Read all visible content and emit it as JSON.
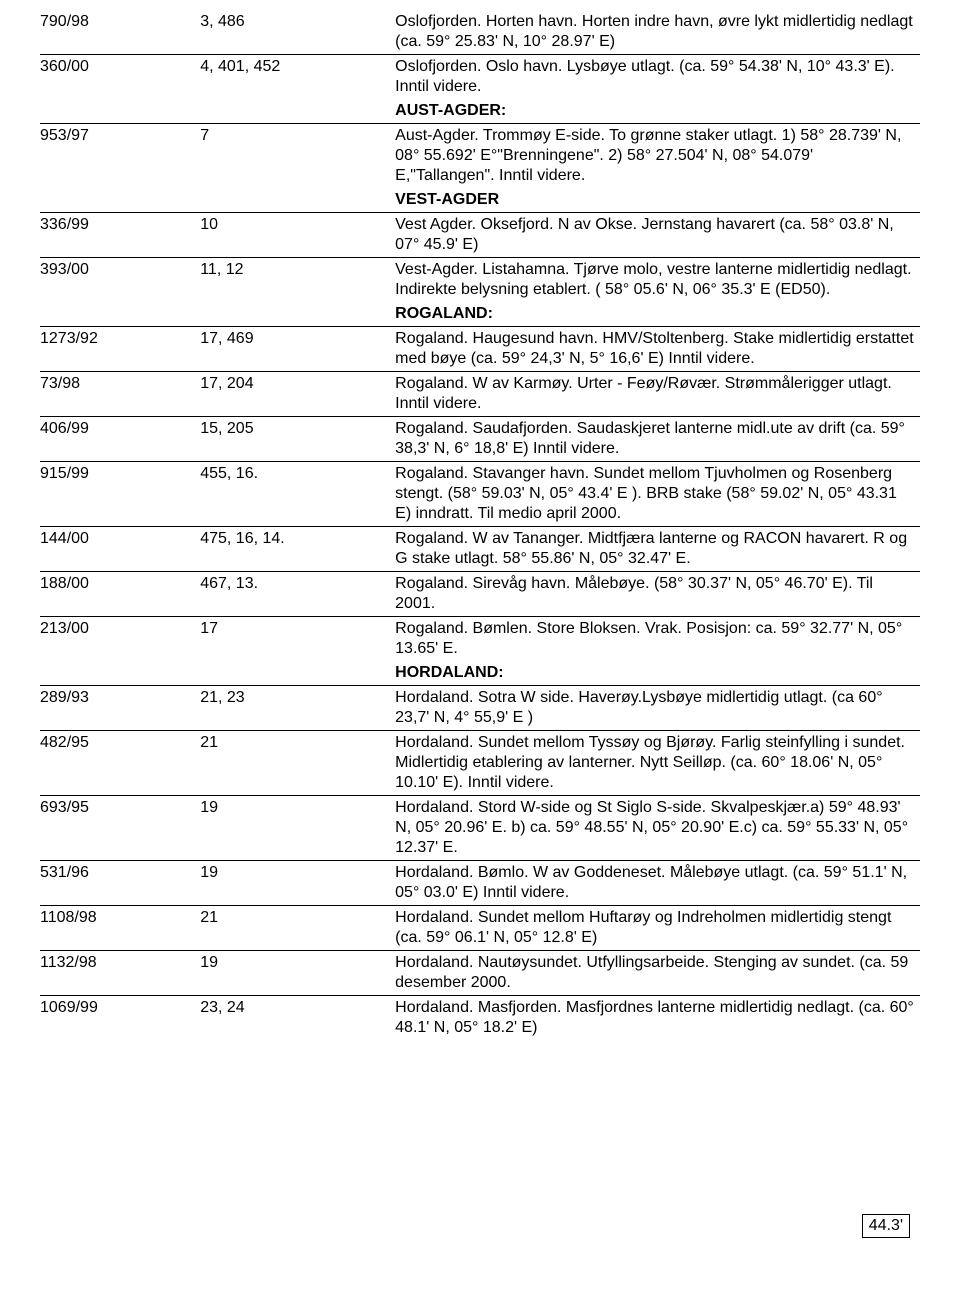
{
  "sections": {
    "aust_agder": "AUST-AGDER:",
    "vest_agder": "VEST-AGDER",
    "rogaland": "ROGALAND:",
    "hordaland": "HORDALAND:"
  },
  "rows": {
    "r790_98": {
      "c0": "790/98",
      "c1": "3, 486",
      "c2": "Oslofjorden. Horten havn. Horten indre havn, øvre lykt midlertidig nedlagt (ca. 59° 25.83' N, 10° 28.97' E)"
    },
    "r360_00": {
      "c0": "360/00",
      "c1": "4, 401, 452",
      "c2": "Oslofjorden. Oslo havn. Lysbøye utlagt. (ca. 59° 54.38' N, 10° 43.3' E). Inntil videre."
    },
    "r953_97": {
      "c0": "953/97",
      "c1": "7",
      "c2": "Aust-Agder. Trommøy E-side. To grønne staker utlagt. 1) 58° 28.739' N, 08° 55.692' E°\"Brenningene\". 2) 58° 27.504' N, 08° 54.079' E,\"Tallangen\". Inntil videre."
    },
    "r336_99": {
      "c0": "336/99",
      "c1": "10",
      "c2": "Vest Agder. Oksefjord. N av Okse. Jernstang havarert (ca. 58° 03.8' N, 07° 45.9' E)"
    },
    "r393_00": {
      "c0": "393/00",
      "c1": "11, 12",
      "c2": "Vest-Agder. Listahamna. Tjørve molo, vestre lanterne midlertidig nedlagt. Indirekte belysning etablert. ( 58° 05.6' N, 06° 35.3' E (ED50)."
    },
    "r1273_92": {
      "c0": "1273/92",
      "c1": "17, 469",
      "c2": "Rogaland. Haugesund havn. HMV/Stoltenberg. Stake midlertidig erstattet med bøye (ca. 59° 24,3' N, 5° 16,6' E) Inntil videre."
    },
    "r73_98": {
      "c0": "73/98",
      "c1": "17, 204",
      "c2": "Rogaland. W av Karmøy. Urter - Feøy/Røvær. Strømmålerigger utlagt. Inntil videre."
    },
    "r406_99": {
      "c0": "406/99",
      "c1": "15, 205",
      "c2": "Rogaland. Saudafjorden. Saudaskjeret lanterne midl.ute av drift (ca. 59° 38,3' N, 6° 18,8' E) Inntil videre."
    },
    "r915_99": {
      "c0": "915/99",
      "c1": "455, 16.",
      "c2": "Rogaland. Stavanger havn. Sundet mellom Tjuvholmen og Rosenberg stengt. (58° 59.03' N, 05° 43.4' E ). BRB stake (58° 59.02' N, 05° 43.31 E) inndratt. Til medio april 2000."
    },
    "r144_00": {
      "c0": "144/00",
      "c1": "475, 16, 14.",
      "c2": "Rogaland. W av Tananger. Midtfjæra lanterne og RACON havarert. R og G stake utlagt. 58° 55.86' N, 05° 32.47' E."
    },
    "r188_00": {
      "c0": "188/00",
      "c1": "467, 13.",
      "c2": "Rogaland. Sirevåg havn. Målebøye. (58° 30.37' N, 05° 46.70' E). Til 2001."
    },
    "r213_00": {
      "c0": "213/00",
      "c1": "17",
      "c2": "Rogaland. Bømlen. Store Bloksen. Vrak. Posisjon: ca. 59° 32.77' N, 05° 13.65' E."
    },
    "r289_93": {
      "c0": "289/93",
      "c1": "21, 23",
      "c2": "Hordaland. Sotra W side. Haverøy.Lysbøye midlertidig utlagt. (ca 60° 23,7' N, 4° 55,9' E )"
    },
    "r482_95": {
      "c0": "482/95",
      "c1": "21",
      "c2": "Hordaland. Sundet mellom Tyssøy og Bjørøy. Farlig steinfylling i sundet. Midlertidig etablering av lanterner. Nytt Seilløp. (ca. 60° 18.06' N, 05° 10.10' E). Inntil videre."
    },
    "r693_95": {
      "c0": "693/95",
      "c1": "19",
      "c2": "Hordaland. Stord W-side og St Siglo S-side. Skvalpeskjær.a) 59° 48.93' N, 05° 20.96' E. b) ca. 59° 48.55' N, 05° 20.90' E.c) ca. 59° 55.33' N, 05° 12.37' E."
    },
    "r531_96": {
      "c0": "531/96",
      "c1": "19",
      "c2": "Hordaland. Bømlo. W av Goddeneset. Målebøye utlagt. (ca. 59° 51.1' N, 05° 03.0' E) Inntil videre."
    },
    "r1108_98": {
      "c0": "1108/98",
      "c1": "21",
      "c2": "Hordaland. Sundet mellom Huftarøy og Indreholmen midlertidig stengt (ca. 59° 06.1' N, 05° 12.8' E)"
    },
    "r1132_98": {
      "c0": "1132/98",
      "c1": "19",
      "c2": "Hordaland. Nautøysundet. Utfyllingsarbeide. Stenging av sundet. (ca. 59 desember 2000."
    },
    "r1069_99": {
      "c0": "1069/99",
      "c1": "23, 24",
      "c2": "Hordaland. Masfjorden. Masfjordnes lanterne midlertidig nedlagt. (ca. 60° 48.1' N, 05° 18.2' E)"
    }
  },
  "page_note": "44.3'"
}
